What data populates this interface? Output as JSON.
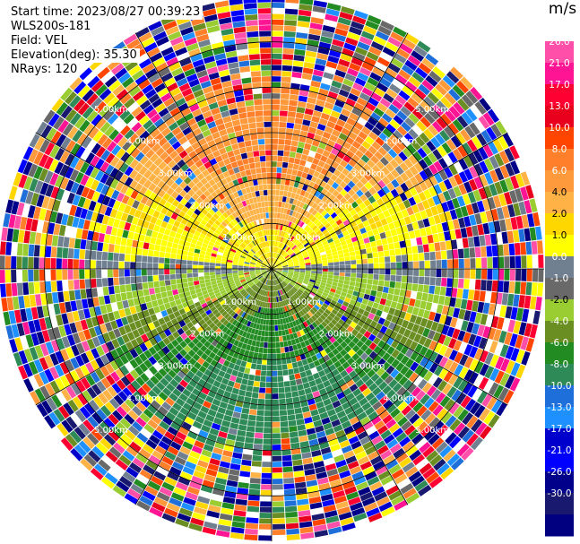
{
  "header": {
    "start_time": "Start time: 2023/08/27 00:39:23",
    "instrument": "WLS200s-181",
    "field": "Field: VEL",
    "elevation": "Elevation(deg): 35.30",
    "nrays": "NRays: 120"
  },
  "chart_data": {
    "type": "ppi",
    "field": "VEL",
    "units": "m/s",
    "n_rays": 120,
    "range_rings_km": [
      1.0,
      2.0,
      3.0,
      4.0,
      5.0
    ],
    "ring_labels": [
      "1.00km",
      "2.00km",
      "3.00km",
      "4.00km",
      "5.00km"
    ],
    "max_range_km": 6.0,
    "spoke_interval_deg": 30,
    "colorbar": {
      "units": "m/s",
      "ticks": [
        "26.0",
        "21.0",
        "17.0",
        "13.0",
        "10.0",
        "8.0",
        "6.0",
        "4.0",
        "2.0",
        "1.0",
        "0.0",
        "-1.0",
        "-2.0",
        "-4.0",
        "-6.0",
        "-8.0",
        "-10.0",
        "-13.0",
        "-17.0",
        "-21.0",
        "-26.0",
        "-30.0"
      ],
      "colors": [
        "#ffffff",
        "#ff4fa8",
        "#ff1493",
        "#ff0033",
        "#e8001c",
        "#ff4500",
        "#ff7f2a",
        "#ff9a3c",
        "#ffb347",
        "#ffd700",
        "#ffff00",
        "#708090",
        "#696969",
        "#9acd32",
        "#6b8e23",
        "#228b22",
        "#2e8b57",
        "#1e6fd9",
        "#1e90ff",
        "#0000cd",
        "#0000ff",
        "#00008b",
        "#191970",
        "#000080"
      ]
    },
    "pattern": {
      "near_range_dominant": "positive (1-8 m/s) toward north, negative (-1 to -8 m/s) toward south",
      "far_range": "noisy / random velocities"
    }
  }
}
